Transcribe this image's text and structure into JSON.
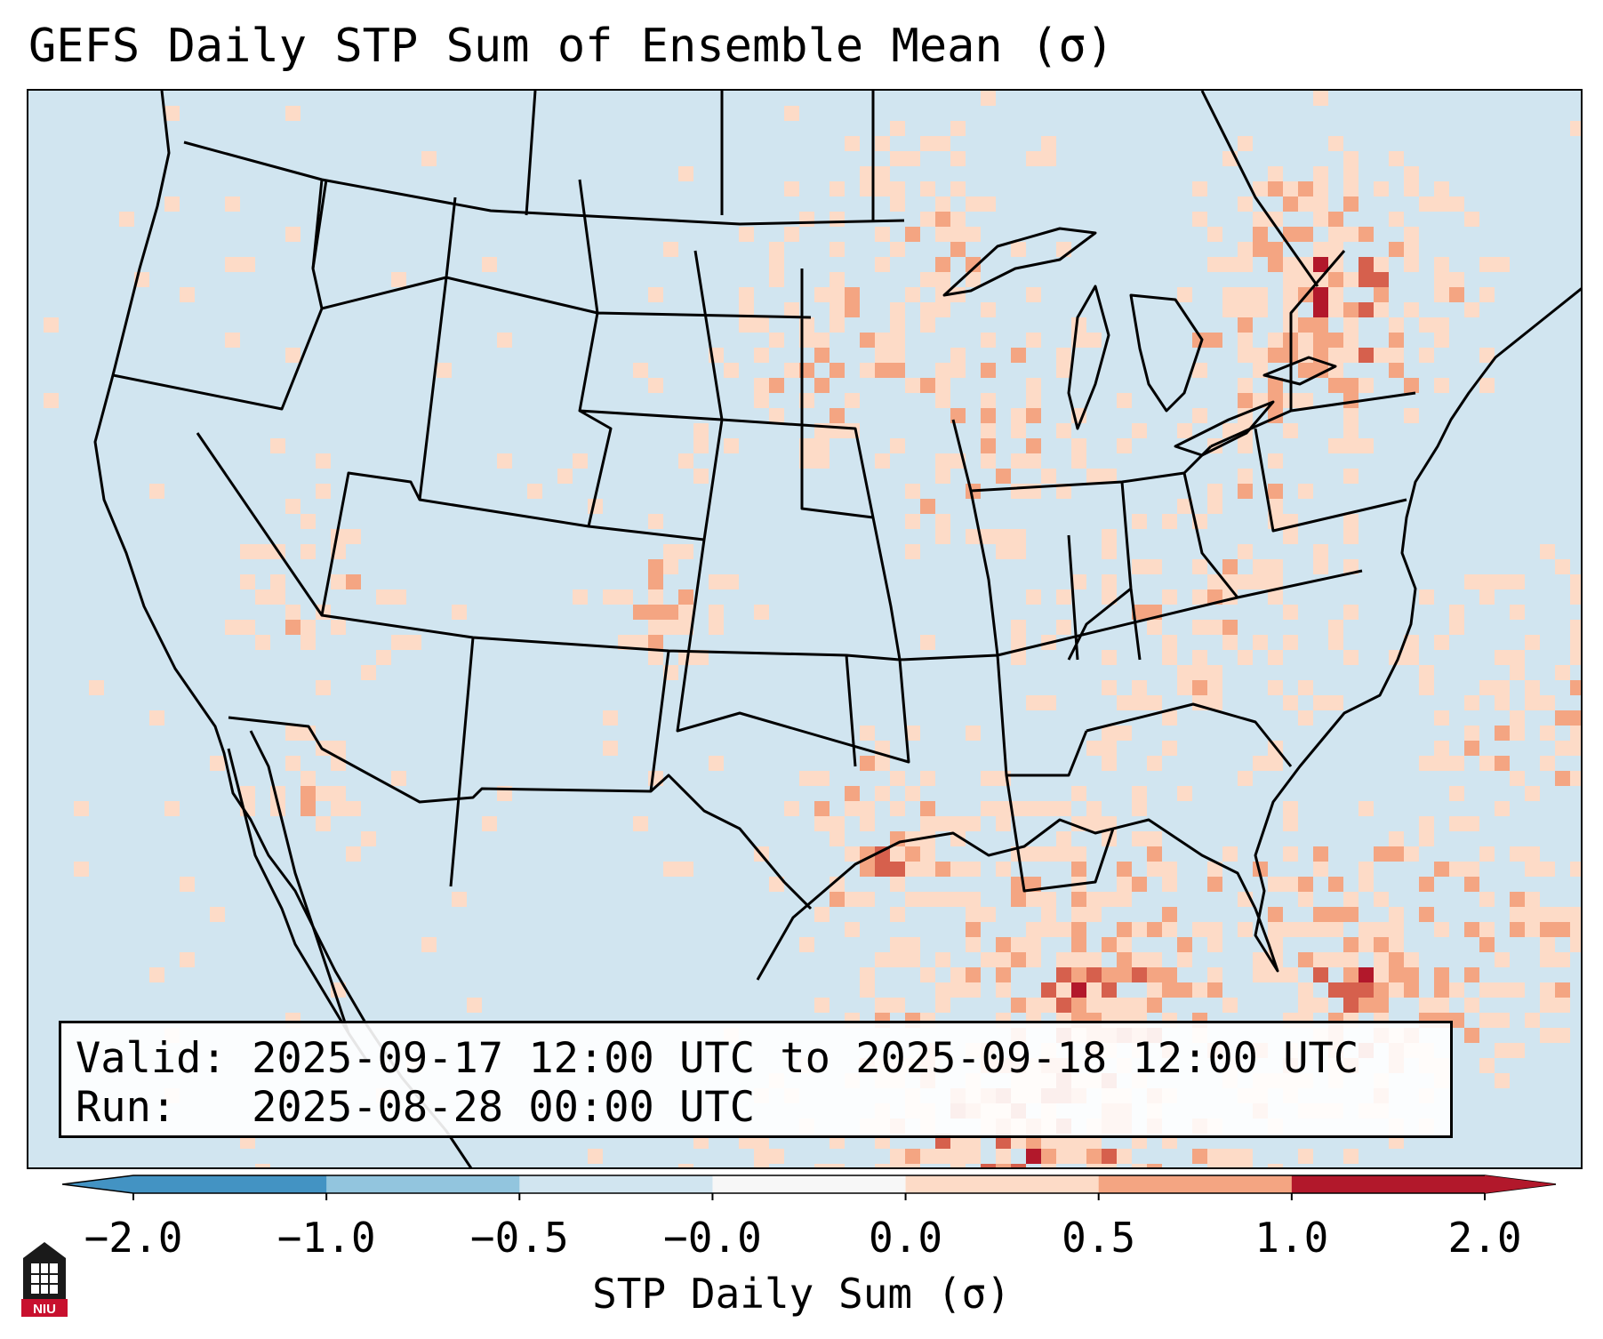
{
  "title": "GEFS Daily STP Sum of Ensemble Mean (σ)",
  "valid_line": "Valid: 2025-09-17 12:00 UTC to 2025-09-18 12:00 UTC",
  "run_line": "Run:   2025-08-28 00:00 UTC",
  "colorbar": {
    "label": "STP Daily Sum (σ)",
    "ticks": [
      "−2.0",
      "−1.0",
      "−0.5",
      "−0.0",
      "0.0",
      "0.5",
      "1.0",
      "2.0"
    ],
    "colors": [
      "#4393c3",
      "#92c5de",
      "#d1e5f0",
      "#f7f7f7",
      "#fddbc7",
      "#f4a582",
      "#d6604d",
      "#b2182b"
    ]
  },
  "logo_text": "NIU"
}
